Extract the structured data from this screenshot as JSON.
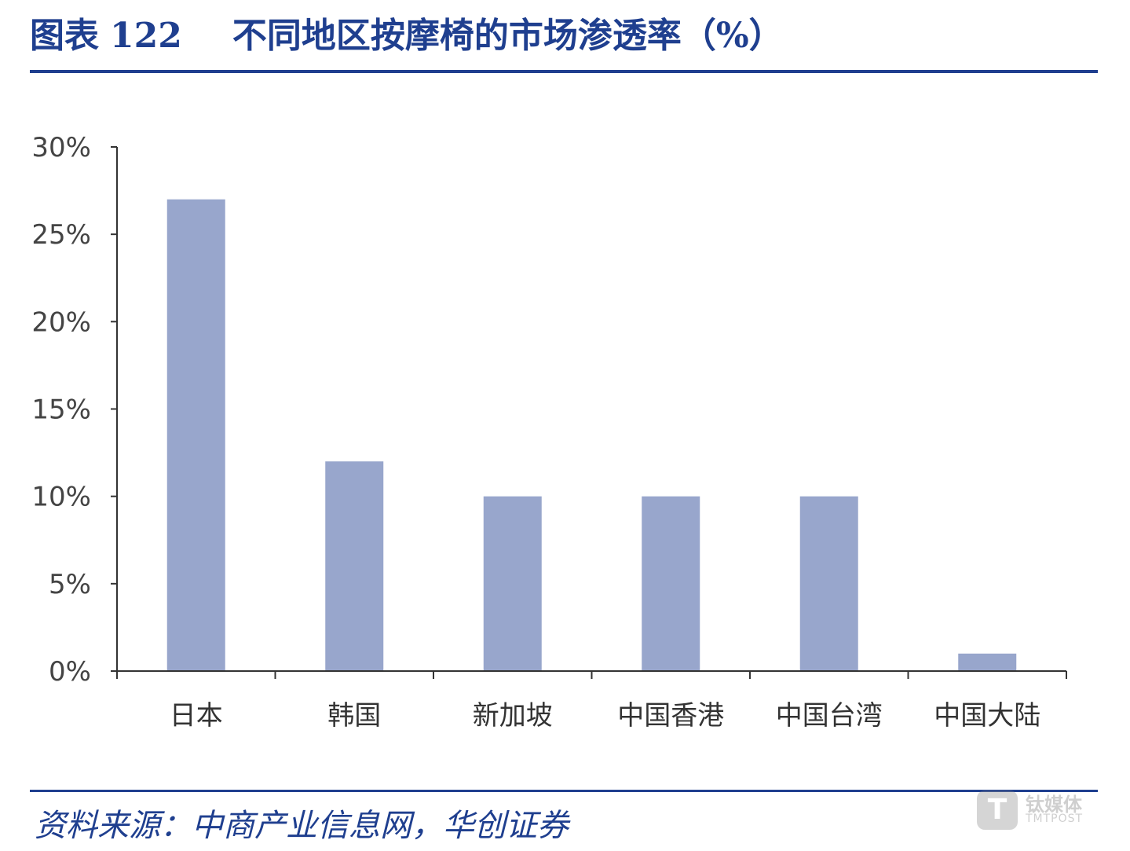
{
  "header": {
    "figure_label": "图表",
    "figure_number": "122",
    "title": "不同地区按摩椅的市场渗透率（%）"
  },
  "source": "资料来源：中商产业信息网，华创证券",
  "watermark": {
    "logo_letter": "T",
    "brand_cn": "钛媒体",
    "brand_en": "TMTPOST"
  },
  "colors": {
    "bar": "#98a6cc",
    "accent": "#1f3f8f",
    "axis": "#333333"
  },
  "chart_data": {
    "type": "bar",
    "title": "不同地区按摩椅的市场渗透率（%）",
    "categories": [
      "日本",
      "韩国",
      "新加坡",
      "中国香港",
      "中国台湾",
      "中国大陆"
    ],
    "values": [
      27,
      12,
      10,
      10,
      10,
      1
    ],
    "unit": "%",
    "ylim": [
      0,
      30
    ],
    "yticks": [
      0,
      5,
      10,
      15,
      20,
      25,
      30
    ],
    "ytick_labels": [
      "0%",
      "5%",
      "10%",
      "15%",
      "20%",
      "25%",
      "30%"
    ],
    "xlabel": "",
    "ylabel": "",
    "grid": false,
    "legend": "none"
  }
}
